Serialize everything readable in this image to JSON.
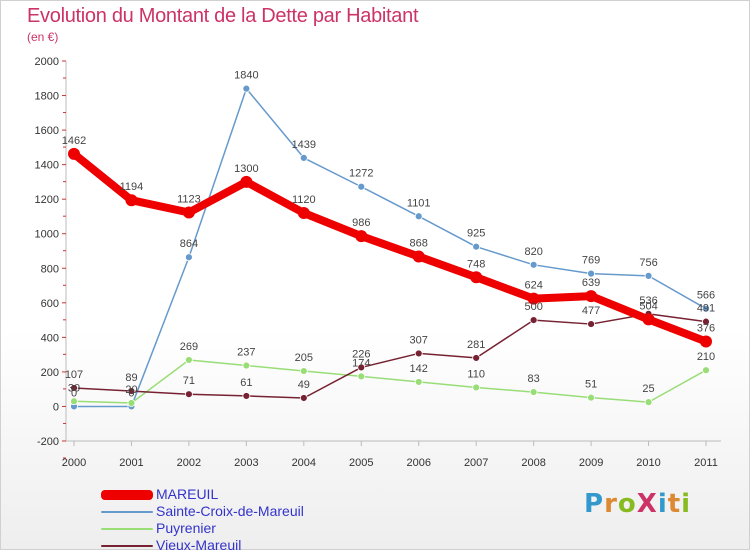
{
  "chart_data": {
    "type": "line",
    "title": "Evolution du Montant de la Dette par Habitant",
    "subtitle": "(en €)",
    "x": [
      "2000",
      "2001",
      "2002",
      "2003",
      "2004",
      "2005",
      "2006",
      "2007",
      "2008",
      "2009",
      "2010",
      "2011"
    ],
    "ylim": [
      -200,
      2000
    ],
    "yticks": [
      "-200",
      "0",
      "200",
      "400",
      "600",
      "800",
      "1000",
      "1200",
      "1400",
      "1600",
      "1800",
      "2000"
    ],
    "grid": false,
    "legend_position": "bottom-left",
    "series": [
      {
        "name": "MAREUIL",
        "color": "#ee0000",
        "values": [
          1462,
          1194,
          1123,
          1300,
          1120,
          986,
          868,
          748,
          624,
          639,
          504,
          376
        ]
      },
      {
        "name": "Sainte-Croix-de-Mareuil",
        "color": "#6699cc",
        "values": [
          0,
          0,
          864,
          1840,
          1439,
          1272,
          1101,
          925,
          820,
          769,
          756,
          566
        ]
      },
      {
        "name": "Puyrenier",
        "color": "#99dd77",
        "values": [
          30,
          20,
          269,
          237,
          205,
          174,
          142,
          110,
          83,
          51,
          25,
          210
        ]
      },
      {
        "name": "Vieux-Mareuil",
        "color": "#772233",
        "values": [
          107,
          89,
          71,
          61,
          49,
          226,
          307,
          281,
          500,
          477,
          536,
          491
        ]
      }
    ],
    "data_labels": {
      "MAREUIL": [
        "1462",
        "1194",
        "1123",
        "1300",
        "1120",
        "986",
        "868",
        "748",
        "624",
        "639",
        "504",
        "376"
      ],
      "Sainte-Croix-de-Mareuil": [
        "0",
        "0",
        "864",
        "1840",
        "1439",
        "1272",
        "1101",
        "925",
        "820",
        "769",
        "756",
        "566"
      ],
      "Puyrenier": [
        "30",
        "20",
        "269",
        "237",
        "205",
        "174",
        "142",
        "110",
        "83",
        "51",
        "25",
        "210"
      ],
      "Vieux-Mareuil": [
        "107",
        "89",
        "71",
        "61",
        "49",
        "226",
        "307",
        "281",
        "500",
        "477",
        "536",
        "491"
      ]
    }
  },
  "logo": {
    "text": "ProXiti",
    "colors": [
      "#3399cc",
      "#dd8833",
      "#88bb22",
      "#cc3366",
      "#3399cc",
      "#dd8833",
      "#88bb22"
    ]
  }
}
